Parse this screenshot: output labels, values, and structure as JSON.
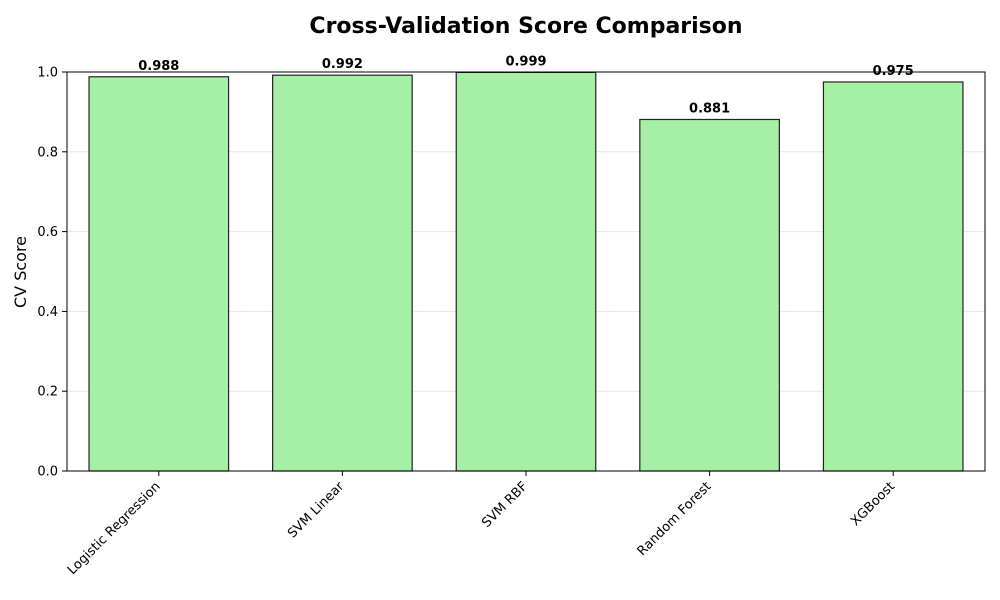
{
  "chart_data": {
    "type": "bar",
    "title": "Cross-Validation Score Comparison",
    "xlabel": "",
    "ylabel": "CV Score",
    "categories": [
      "Logistic Regression",
      "SVM Linear",
      "SVM RBF",
      "Random Forest",
      "XGBoost"
    ],
    "values": [
      0.988,
      0.992,
      0.999,
      0.881,
      0.975
    ],
    "value_labels": [
      "0.988",
      "0.992",
      "0.999",
      "0.881",
      "0.975"
    ],
    "ylim": [
      0,
      1.0
    ],
    "yticks": [
      "0.0",
      "0.2",
      "0.4",
      "0.6",
      "0.8",
      "1.0"
    ],
    "ytick_values": [
      0,
      0.2,
      0.4,
      0.6,
      0.8,
      1.0
    ],
    "grid": "horizontal",
    "legend": "none",
    "colors": {
      "bar_fill": "#a6f0a6",
      "bar_edge": "#222222",
      "grid": "#e6e6e6",
      "axis": "#000000"
    }
  }
}
